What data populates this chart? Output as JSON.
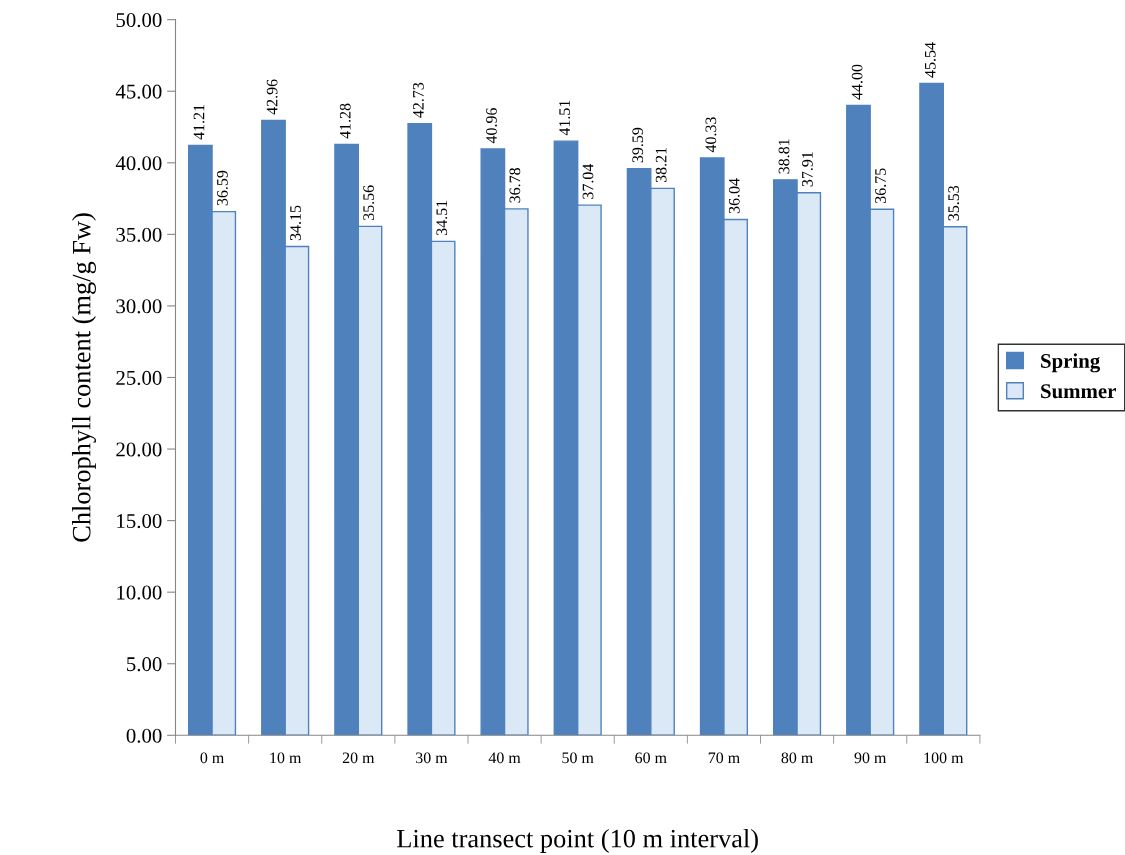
{
  "chart_data": {
    "type": "bar",
    "xlabel": "Line transect point (10 m interval)",
    "ylabel": "Chlorophyll content (mg/g Fw)",
    "categories": [
      "0 m",
      "10 m",
      "20 m",
      "30 m",
      "40 m",
      "50 m",
      "60 m",
      "70 m",
      "80 m",
      "90 m",
      "100 m"
    ],
    "series": [
      {
        "name": "Spring",
        "color": "#4f81bd",
        "values": [
          41.21,
          42.96,
          41.28,
          42.73,
          40.96,
          41.51,
          39.59,
          40.33,
          38.81,
          44.0,
          45.54
        ],
        "value_labels": [
          "41.21",
          "42.96",
          "41.28",
          "42.73",
          "40.96",
          "41.51",
          "39.59",
          "40.33",
          "38.81",
          "44.00",
          "45.54"
        ]
      },
      {
        "name": "Summer",
        "color": "#dbe8f6",
        "values": [
          36.59,
          34.15,
          35.56,
          34.51,
          36.78,
          37.04,
          38.21,
          36.04,
          37.91,
          36.75,
          35.53
        ],
        "value_labels": [
          "36.59",
          "34.15",
          "35.56",
          "34.51",
          "36.78",
          "37.04",
          "38.21",
          "36.04",
          "37.91",
          "36.75",
          "35.53"
        ]
      }
    ],
    "ylim": [
      0,
      50
    ],
    "yticks": [
      {
        "value": 0,
        "label": "0.00"
      },
      {
        "value": 5,
        "label": "5.00"
      },
      {
        "value": 10,
        "label": "10.00"
      },
      {
        "value": 15,
        "label": "15.00"
      },
      {
        "value": 20,
        "label": "20.00"
      },
      {
        "value": 25,
        "label": "25.00"
      },
      {
        "value": 30,
        "label": "30.00"
      },
      {
        "value": 35,
        "label": "35.00"
      },
      {
        "value": 40,
        "label": "40.00"
      },
      {
        "value": 45,
        "label": "45.00"
      },
      {
        "value": 50,
        "label": "50.00"
      }
    ],
    "grid": false,
    "legend": "right"
  }
}
